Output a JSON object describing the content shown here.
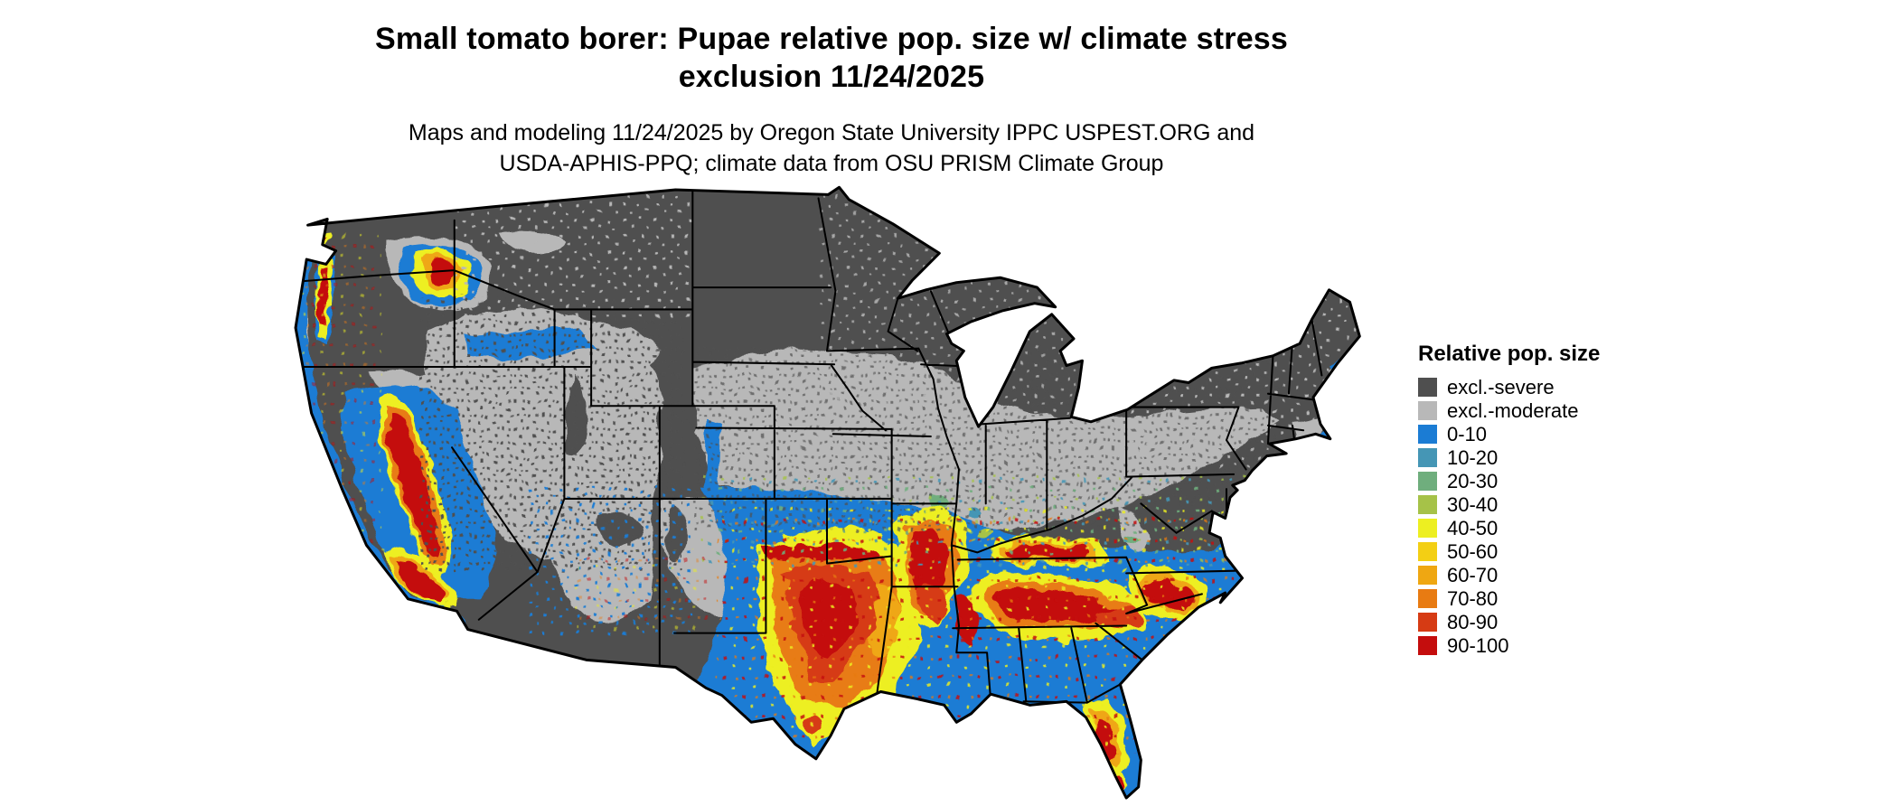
{
  "header": {
    "title_line1": "Small tomato borer: Pupae relative pop. size w/ climate stress",
    "title_line2": "exclusion 11/24/2025",
    "subtitle_line1": "Maps and modeling 11/24/2025 by Oregon State University IPPC USPEST.ORG and",
    "subtitle_line2": "USDA-APHIS-PPQ; climate data from OSU PRISM Climate Group"
  },
  "legend": {
    "title": "Relative pop. size",
    "items": [
      {
        "label": "excl.-severe",
        "color": "#4f4f4f"
      },
      {
        "label": "excl.-moderate",
        "color": "#b8b8b8"
      },
      {
        "label": "0-10",
        "color": "#1b7cd4"
      },
      {
        "label": "10-20",
        "color": "#4596b5"
      },
      {
        "label": "20-30",
        "color": "#6fae7d"
      },
      {
        "label": "30-40",
        "color": "#a6c248"
      },
      {
        "label": "40-50",
        "color": "#edef21"
      },
      {
        "label": "50-60",
        "color": "#f3cf14"
      },
      {
        "label": "60-70",
        "color": "#efa712"
      },
      {
        "label": "70-80",
        "color": "#e87b12"
      },
      {
        "label": "80-90",
        "color": "#d63b14"
      },
      {
        "label": "90-100",
        "color": "#c40d0d"
      }
    ]
  },
  "chart_data": {
    "type": "heatmap",
    "subtype": "choropleth-raster-map",
    "title": "Small tomato borer: Pupae relative pop. size w/ climate stress exclusion 11/24/2025",
    "region": "Continental United States",
    "variable": "Relative pop. size",
    "classes": [
      "excl.-severe",
      "excl.-moderate",
      "0-10",
      "10-20",
      "20-30",
      "30-40",
      "40-50",
      "50-60",
      "60-70",
      "70-80",
      "80-90",
      "90-100"
    ],
    "class_colors": [
      "#4f4f4f",
      "#b8b8b8",
      "#1b7cd4",
      "#4596b5",
      "#6fae7d",
      "#a6c248",
      "#edef21",
      "#f3cf14",
      "#efa712",
      "#e87b12",
      "#d63b14",
      "#c40d0d"
    ],
    "legend_position": "right",
    "spatial_pattern": {
      "northern_tier_rockies_upper_midwest_northeast": "excl.-severe (dark gray)",
      "great_basin_central_plains_ohio_valley_band": "excl.-moderate (light gray)",
      "southern_us_gulf_atlantic_coast_california": "0-10 (blue) baseline",
      "hotspots_40_100": [
        "central and north Texas",
        "southern Oklahoma / Red River band",
        "Arkansas and lower Mississippi valley",
        "central Mississippi-Alabama-Georgia band",
        "middle Tennessee",
        "Carolinas inner coastal plain",
        "central Florida ridge and south Florida tip",
        "California Central Valley and southern California coast",
        "Willamette Valley and Puget lowlands",
        "Columbia Basin",
        "Snake River Plain (scattered)"
      ]
    }
  }
}
